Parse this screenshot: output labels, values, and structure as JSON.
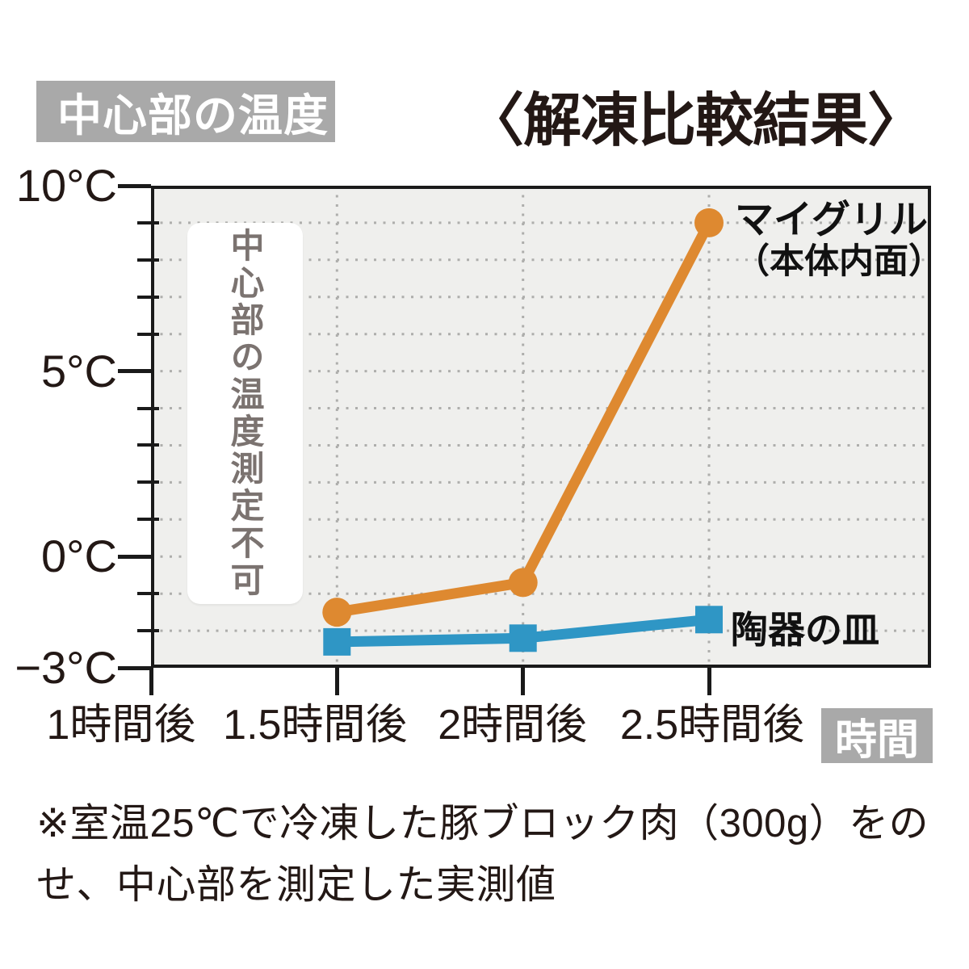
{
  "chart_data": {
    "type": "line",
    "title": "〈解凍比較結果〉",
    "y_axis_badge": "中心部の温度",
    "x_axis_badge": "時間",
    "x": [
      1,
      1.5,
      2,
      2.5
    ],
    "x_tick_labels": [
      "1時間後",
      "1.5時間後",
      "2時間後",
      "2.5時間後"
    ],
    "ylim": [
      -3,
      10
    ],
    "y_major_ticks": [
      {
        "value": 10,
        "label": "10°C"
      },
      {
        "value": 5,
        "label": "5°C"
      },
      {
        "value": 0,
        "label": "0°C"
      },
      {
        "value": -3,
        "label": "−3°C"
      }
    ],
    "y_minor_tick_values": [
      9,
      8,
      7,
      6,
      4,
      3,
      2,
      1,
      -1,
      -2
    ],
    "grid": "dotted",
    "plot_background": "#efefed",
    "series": [
      {
        "name": "マイグリル（本体内面）",
        "marker": "circle",
        "color": "#de8930",
        "x": [
          1.5,
          2,
          2.5
        ],
        "values": [
          -1.5,
          -0.7,
          9
        ]
      },
      {
        "name": "陶器の皿",
        "marker": "square",
        "color": "#2f96c5",
        "x": [
          1.5,
          2,
          2.5
        ],
        "values": [
          -2.3,
          -2.2,
          -1.7
        ]
      }
    ],
    "annotation": "中心部の温度測定不可",
    "legend": [
      {
        "line1": "マイグリル",
        "line2": "（本体内面）"
      },
      {
        "line1": "陶器の皿"
      }
    ]
  },
  "footnote": "※室温25℃で冷凍した豚ブロック肉（300g）をのせ、中心部を測定した実測値",
  "colors": {
    "badge_bg": "#a9a9a9",
    "badge_text": "#ffffff",
    "text": "#231815",
    "annotation_text": "#7b7370",
    "grid_dot": "#aeaeac",
    "axis": "#1a1a1a"
  }
}
